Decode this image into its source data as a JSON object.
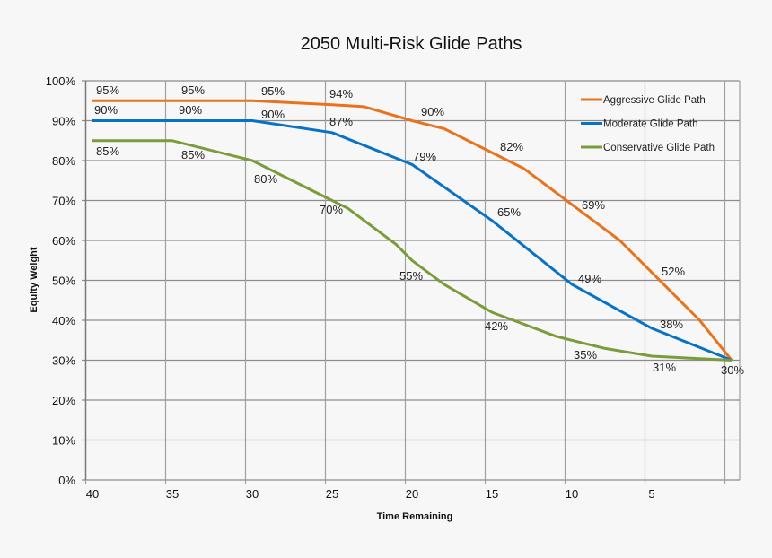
{
  "chart_data": {
    "type": "line",
    "title": "2050 Multi-Risk Glide Paths",
    "xlabel": "Time Remaining",
    "ylabel": "Equity Weight",
    "xlim": [
      40,
      0
    ],
    "ylim": [
      0,
      100
    ],
    "x_ticks": [
      "40",
      "35",
      "30",
      "25",
      "20",
      "15",
      "10",
      "5"
    ],
    "y_ticks": [
      "0%",
      "10%",
      "20%",
      "30%",
      "40%",
      "50%",
      "60%",
      "70%",
      "80%",
      "90%",
      "100%"
    ],
    "grid": true,
    "legend_position": "top-right",
    "series": [
      {
        "name": "Aggressive Glide Path",
        "color": "#e8731c",
        "x": [
          40,
          35,
          30,
          25,
          23,
          20,
          18,
          15,
          13,
          10,
          7,
          5,
          2,
          0
        ],
        "y": [
          95,
          95,
          95,
          94,
          93.5,
          90,
          88,
          82,
          78,
          69,
          60,
          52,
          40,
          30
        ],
        "labels": [
          "95%",
          "95%",
          "95%",
          "94%",
          "90%",
          "82%",
          "69%",
          "52%"
        ]
      },
      {
        "name": "Moderate Glide Path",
        "color": "#0a72c6",
        "x": [
          40,
          35,
          30,
          25,
          20,
          15,
          10,
          5,
          0
        ],
        "y": [
          90,
          90,
          90,
          87,
          79,
          65,
          49,
          38,
          30
        ],
        "labels": [
          "90%",
          "90%",
          "90%",
          "87%",
          "79%",
          "65%",
          "49%",
          "38%",
          "30%"
        ]
      },
      {
        "name": "Conservative Glide Path",
        "color": "#7b9c3c",
        "x": [
          40,
          35,
          30,
          25,
          24,
          21,
          20,
          18,
          15,
          13,
          11,
          10,
          8,
          5,
          0
        ],
        "y": [
          85,
          85,
          80,
          70,
          68,
          59,
          55,
          49,
          42,
          39,
          36,
          35,
          33,
          31,
          30
        ],
        "labels": [
          "85%",
          "85%",
          "80%",
          "70%",
          "55%",
          "42%",
          "35%",
          "31%"
        ]
      }
    ]
  }
}
